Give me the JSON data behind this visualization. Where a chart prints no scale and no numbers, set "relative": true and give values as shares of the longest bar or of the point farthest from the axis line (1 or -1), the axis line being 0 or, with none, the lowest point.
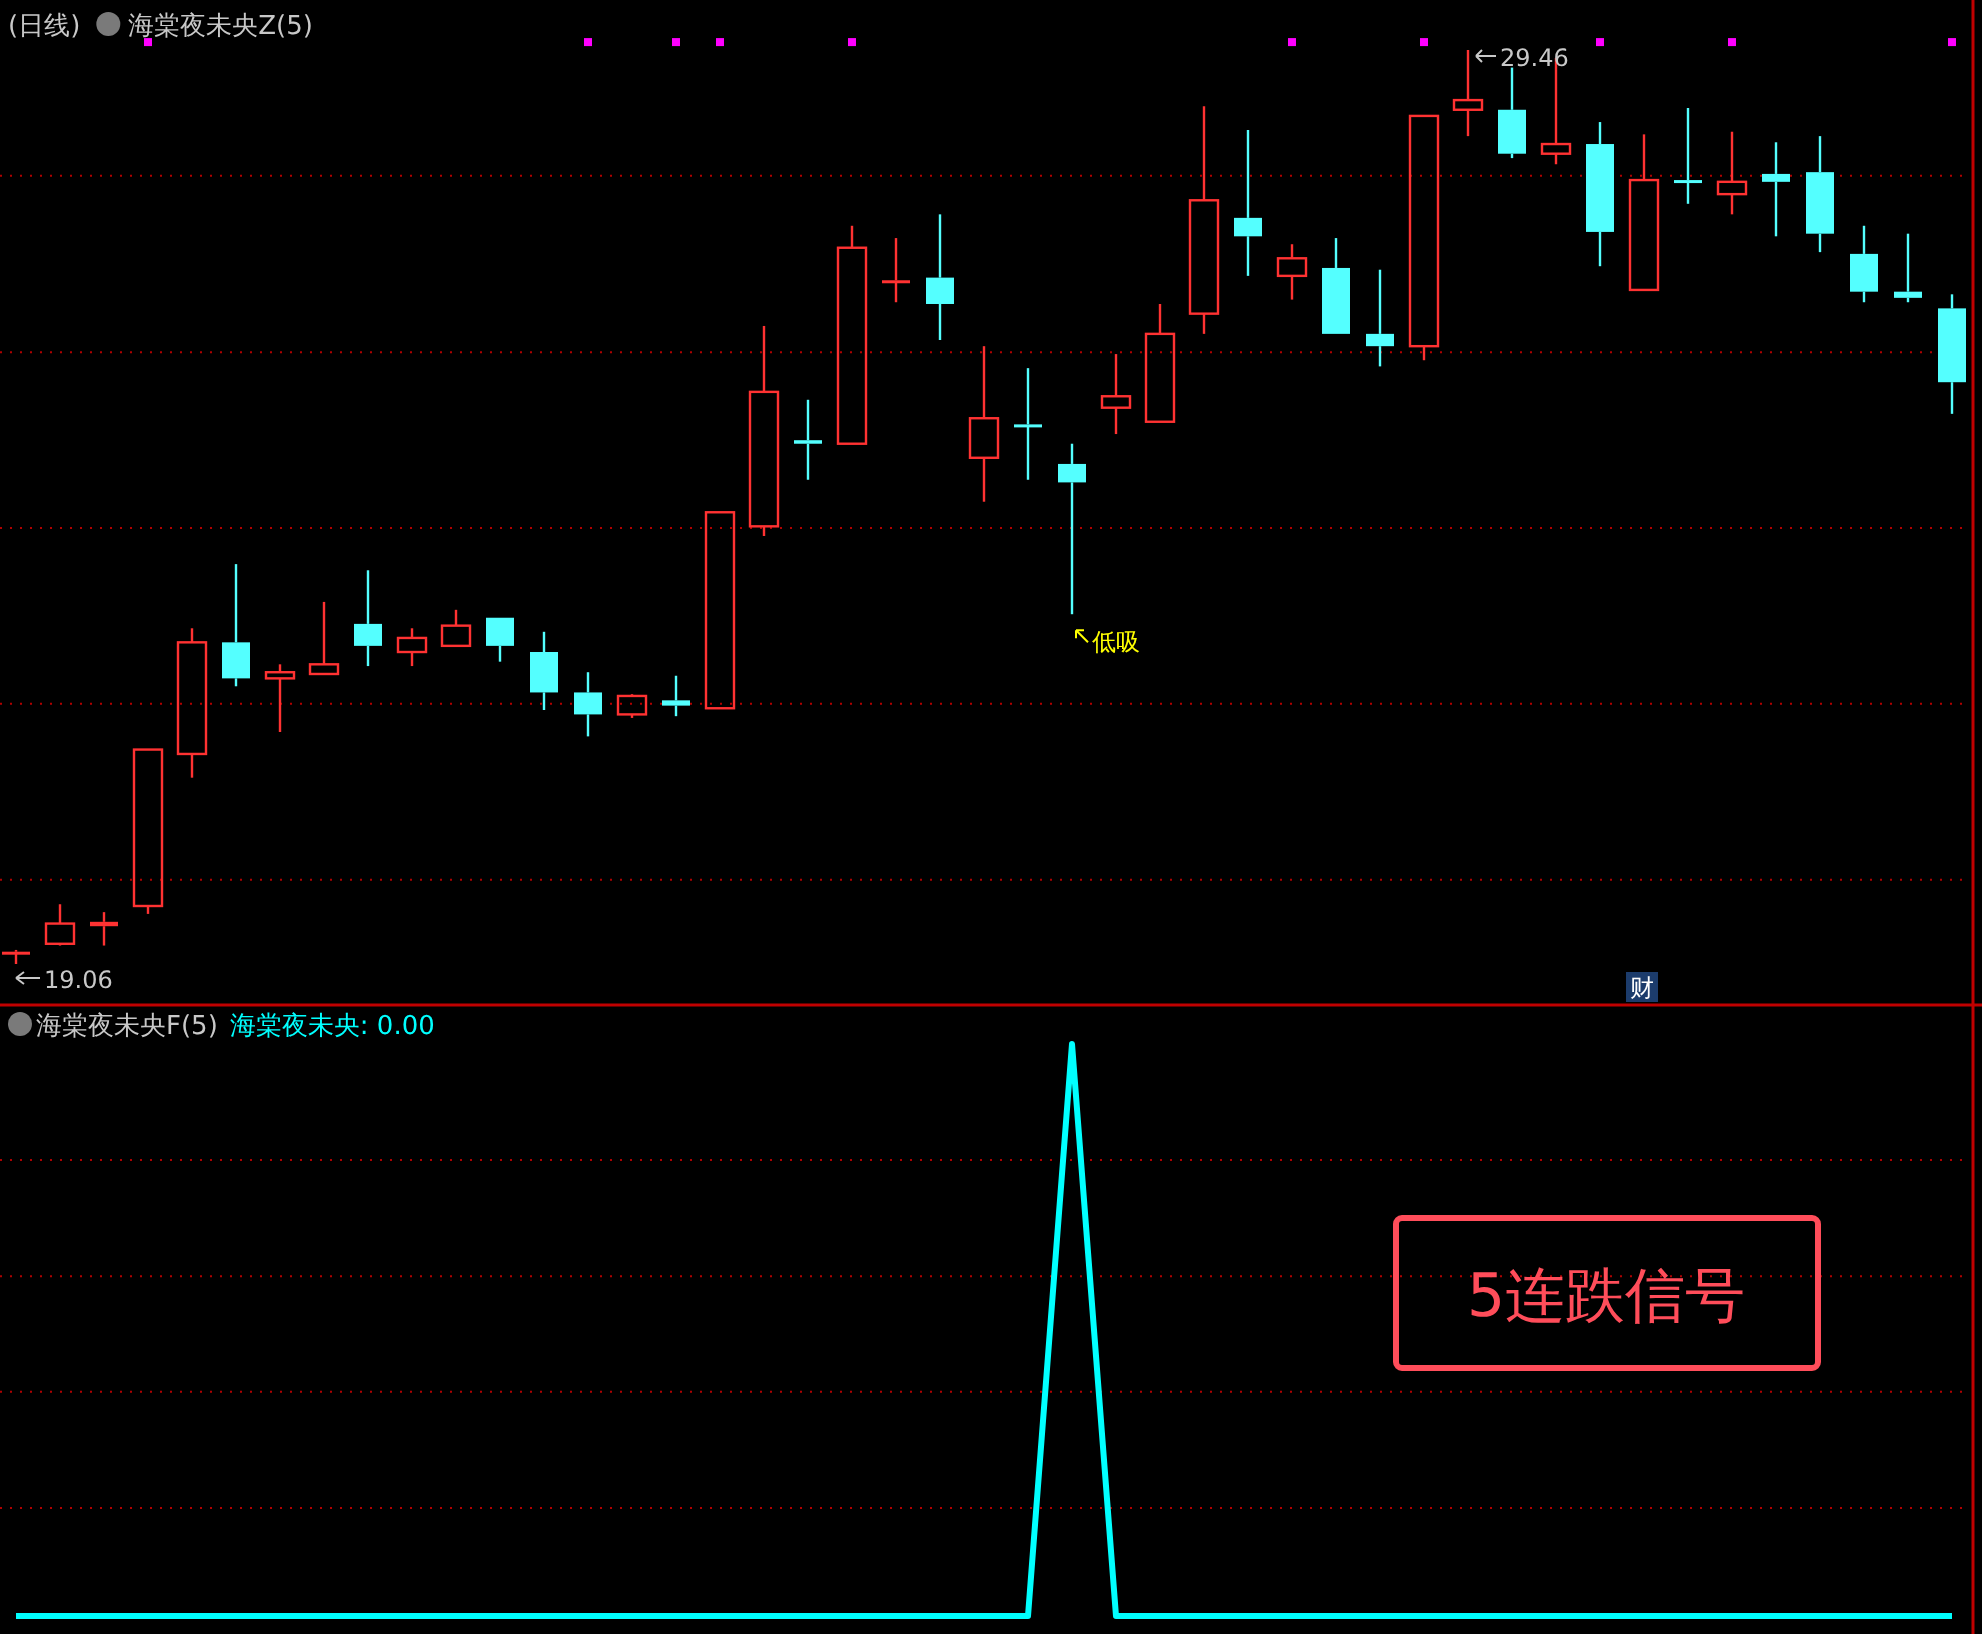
{
  "chart_data": [
    {
      "type": "candlestick",
      "title": "(日线)",
      "subtitle": "海棠夜未央Z(5)",
      "categories": [
        null,
        null,
        null,
        null,
        null,
        null,
        null,
        null,
        null,
        null,
        null,
        null,
        null,
        null,
        null,
        null,
        null,
        null,
        null,
        null,
        null,
        null,
        null,
        null,
        null,
        null,
        null,
        null,
        null,
        null,
        null,
        null,
        null,
        null,
        null,
        null,
        null,
        null,
        null,
        null,
        null,
        null,
        null,
        null,
        null
      ],
      "ohlc": [
        [
          19.2,
          19.22,
          19.06,
          19.2
        ],
        [
          19.29,
          19.74,
          19.27,
          19.52
        ],
        [
          19.49,
          19.65,
          19.27,
          19.54
        ],
        [
          19.72,
          21.5,
          19.63,
          21.5
        ],
        [
          21.45,
          22.88,
          21.18,
          22.72
        ],
        [
          22.72,
          23.61,
          22.22,
          22.31
        ],
        [
          22.31,
          22.47,
          21.7,
          22.38
        ],
        [
          22.36,
          23.18,
          22.36,
          22.47
        ],
        [
          22.93,
          23.54,
          22.45,
          22.68
        ],
        [
          22.61,
          22.88,
          22.45,
          22.77
        ],
        [
          22.68,
          23.09,
          22.68,
          22.91
        ],
        [
          23.0,
          23.0,
          22.5,
          22.68
        ],
        [
          22.61,
          22.84,
          21.95,
          22.15
        ],
        [
          22.15,
          22.38,
          21.65,
          21.9
        ],
        [
          21.9,
          22.13,
          21.86,
          22.11
        ],
        [
          22.06,
          22.34,
          21.88,
          22.0
        ],
        [
          21.97,
          24.2,
          21.97,
          24.2
        ],
        [
          24.04,
          26.32,
          23.93,
          25.57
        ],
        [
          25.02,
          25.48,
          24.57,
          24.98
        ],
        [
          24.98,
          27.46,
          24.98,
          27.21
        ],
        [
          26.83,
          27.32,
          26.59,
          26.84
        ],
        [
          26.87,
          27.59,
          26.16,
          26.57
        ],
        [
          24.82,
          26.09,
          24.32,
          25.27
        ],
        [
          25.2,
          25.84,
          24.57,
          25.18
        ],
        [
          24.75,
          24.98,
          23.04,
          24.54
        ],
        [
          25.39,
          26.0,
          25.09,
          25.52
        ],
        [
          25.23,
          26.57,
          25.23,
          26.23
        ],
        [
          26.46,
          28.82,
          26.23,
          27.75
        ],
        [
          27.55,
          28.55,
          26.89,
          27.34
        ],
        [
          26.89,
          27.25,
          26.62,
          27.09
        ],
        [
          26.98,
          27.32,
          26.23,
          26.23
        ],
        [
          26.23,
          26.96,
          25.86,
          26.09
        ],
        [
          26.09,
          28.71,
          25.93,
          28.71
        ],
        [
          28.78,
          29.46,
          28.48,
          28.89
        ],
        [
          28.78,
          29.26,
          28.23,
          28.28
        ],
        [
          28.28,
          29.37,
          28.16,
          28.39
        ],
        [
          28.39,
          28.64,
          27.0,
          27.39
        ],
        [
          26.73,
          28.5,
          26.73,
          27.98
        ],
        [
          27.98,
          28.8,
          27.71,
          27.96
        ],
        [
          27.82,
          28.53,
          27.59,
          27.96
        ],
        [
          28.05,
          28.41,
          27.34,
          27.96
        ],
        [
          28.07,
          28.48,
          27.16,
          27.37
        ],
        [
          27.14,
          27.46,
          26.59,
          26.71
        ],
        [
          26.71,
          27.37,
          26.59,
          26.64
        ],
        [
          26.52,
          26.68,
          25.32,
          25.68
        ]
      ],
      "colors": [
        "#ff3232",
        "#ff3232",
        "#ff3232",
        "#ff3232",
        "#ff3232",
        "#54ffff",
        "#ff3232",
        "#ff3232",
        "#54ffff",
        "#ff3232",
        "#ff3232",
        "#54ffff",
        "#54ffff",
        "#54ffff",
        "#ff3232",
        "#54ffff",
        "#ff3232",
        "#ff3232",
        "#54ffff",
        "#ff3232",
        "#ff3232",
        "#54ffff",
        "#ff3232",
        "#54ffff",
        "#54ffff",
        "#ff3232",
        "#ff3232",
        "#ff3232",
        "#54ffff",
        "#ff3232",
        "#54ffff",
        "#54ffff",
        "#ff3232",
        "#ff3232",
        "#54ffff",
        "#ff3232",
        "#54ffff",
        "#ff3232",
        "#54ffff",
        "#ff3232",
        "#54ffff",
        "#54ffff",
        "#54ffff",
        "#54ffff",
        "#54ffff"
      ],
      "series": [
        {
          "type": "scatter",
          "color": "#ff00ff",
          "values": [
            null,
            null,
            null,
            29.55,
            null,
            null,
            null,
            null,
            null,
            null,
            null,
            null,
            null,
            29.55,
            null,
            29.55,
            29.55,
            null,
            null,
            29.55,
            null,
            null,
            null,
            null,
            null,
            null,
            null,
            null,
            null,
            29.55,
            null,
            null,
            29.55,
            null,
            null,
            null,
            29.55,
            null,
            null,
            29.55,
            null,
            null,
            null,
            null,
            29.55
          ]
        }
      ],
      "ref_lines": [
        {
          "axis": "y",
          "value": 28.03,
          "color": "#b00000",
          "line_style": "dotted"
        },
        {
          "axis": "y",
          "value": 26.02,
          "color": "#b00000",
          "line_style": "dotted"
        },
        {
          "axis": "y",
          "value": 24.02,
          "color": "#b00000",
          "line_style": "dotted"
        },
        {
          "axis": "y",
          "value": 22.02,
          "color": "#b00000",
          "line_style": "dotted"
        },
        {
          "axis": "y",
          "value": 20.02,
          "color": "#b00000",
          "line_style": "dotted"
        }
      ],
      "annotations": [
        "19.06",
        "29.46",
        "低吸",
        "财"
      ]
    },
    {
      "type": "line",
      "title": "海棠夜未央F(5)",
      "relative": true,
      "legend": "top left",
      "ref_lines": [
        {
          "axis": "y",
          "value": 0.797,
          "color": "#b00000",
          "line_style": "dotted"
        },
        {
          "axis": "y",
          "value": 0.594,
          "color": "#b00000",
          "line_style": "dotted"
        },
        {
          "axis": "y",
          "value": 0.392,
          "color": "#b00000",
          "line_style": "dotted"
        },
        {
          "axis": "y",
          "value": 0.189,
          "color": "#b00000",
          "line_style": "dotted"
        }
      ],
      "categories": [
        null,
        null,
        null,
        null,
        null,
        null,
        null,
        null,
        null,
        null,
        null,
        null,
        null,
        null,
        null,
        null,
        null,
        null,
        null,
        null,
        null,
        null,
        null,
        null,
        null,
        null,
        null,
        null,
        null,
        null,
        null,
        null,
        null,
        null,
        null,
        null,
        null,
        null,
        null,
        null,
        null,
        null,
        null,
        null,
        null
      ],
      "series": [
        {
          "name": "海棠夜未央",
          "color": "#00ffff",
          "values": [
            0,
            0,
            0,
            0,
            0,
            0,
            0,
            0,
            0,
            0,
            0,
            0,
            0,
            0,
            0,
            0,
            0,
            0,
            0,
            0,
            0,
            0,
            0,
            0,
            1,
            0,
            0,
            0,
            0,
            0,
            0,
            0,
            0,
            0,
            0,
            0,
            0,
            0,
            0,
            0,
            0,
            0,
            0,
            0,
            0
          ]
        }
      ],
      "annotations": [
        ": 0.00",
        "5连跌信号"
      ]
    }
  ]
}
